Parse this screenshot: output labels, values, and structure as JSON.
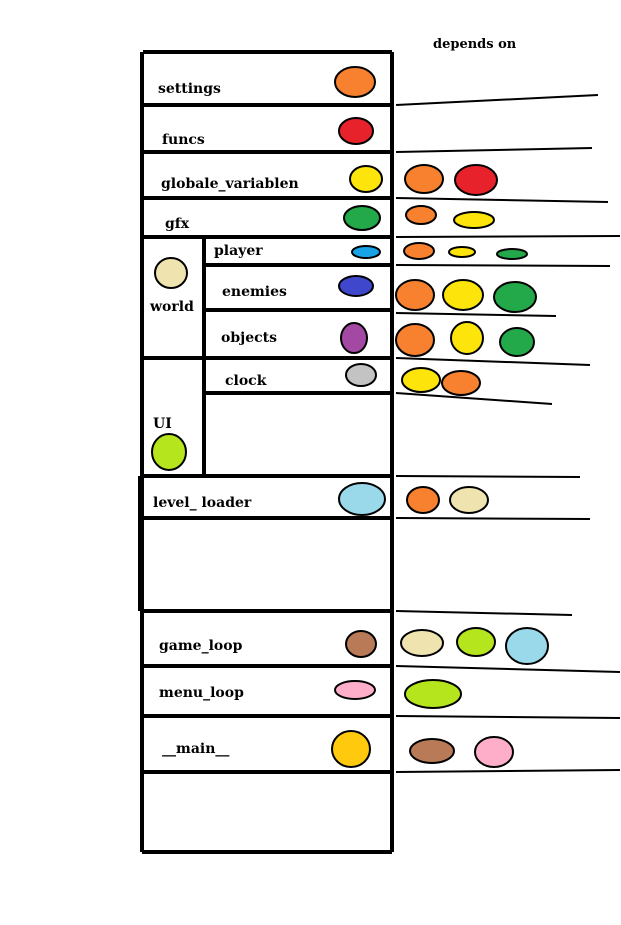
{
  "header": {
    "depends_on": "depends on"
  },
  "colors": {
    "orange": "#f7812f",
    "red": "#e8222b",
    "yellow": "#fde50c",
    "green": "#23a84a",
    "blue": "#1aa2e6",
    "indigo": "#3f48cc",
    "purple": "#a349a4",
    "gray": "#c3c3c3",
    "beige": "#efe4b0",
    "lime": "#b5e61d",
    "lightblue": "#99d9ea",
    "brown": "#b97a57",
    "pink": "#ffaec9",
    "gold": "#ffc90e"
  },
  "modules": [
    {
      "id": "settings",
      "label": "settings",
      "color": "orange",
      "depends_on": []
    },
    {
      "id": "funcs",
      "label": "funcs",
      "color": "red",
      "depends_on": []
    },
    {
      "id": "globale_variablen",
      "label": "globale_variablen",
      "color": "yellow",
      "depends_on": [
        "orange",
        "red"
      ]
    },
    {
      "id": "gfx",
      "label": "gfx",
      "color": "green",
      "depends_on": [
        "orange",
        "yellow"
      ]
    },
    {
      "id": "world",
      "label": "world",
      "color": "beige",
      "depends_on": []
    },
    {
      "id": "player",
      "label": "player",
      "color": "blue",
      "depends_on": [
        "orange",
        "yellow",
        "green"
      ]
    },
    {
      "id": "enemies",
      "label": "enemies",
      "color": "indigo",
      "depends_on": [
        "orange",
        "yellow",
        "green"
      ]
    },
    {
      "id": "objects",
      "label": "objects",
      "color": "purple",
      "depends_on": [
        "orange",
        "yellow",
        "green"
      ]
    },
    {
      "id": "ui",
      "label": "UI",
      "color": "lime",
      "depends_on": []
    },
    {
      "id": "clock",
      "label": "clock",
      "color": "gray",
      "depends_on": [
        "yellow",
        "orange"
      ]
    },
    {
      "id": "level_loader",
      "label": "level_ loader",
      "color": "lightblue",
      "depends_on": [
        "orange",
        "beige"
      ]
    },
    {
      "id": "game_loop",
      "label": "game_loop",
      "color": "brown",
      "depends_on": [
        "beige",
        "lime",
        "lightblue"
      ]
    },
    {
      "id": "menu_loop",
      "label": "menu_loop",
      "color": "pink",
      "depends_on": [
        "lime"
      ]
    },
    {
      "id": "main",
      "label": "__main__",
      "color": "gold",
      "depends_on": [
        "brown",
        "pink"
      ]
    }
  ]
}
